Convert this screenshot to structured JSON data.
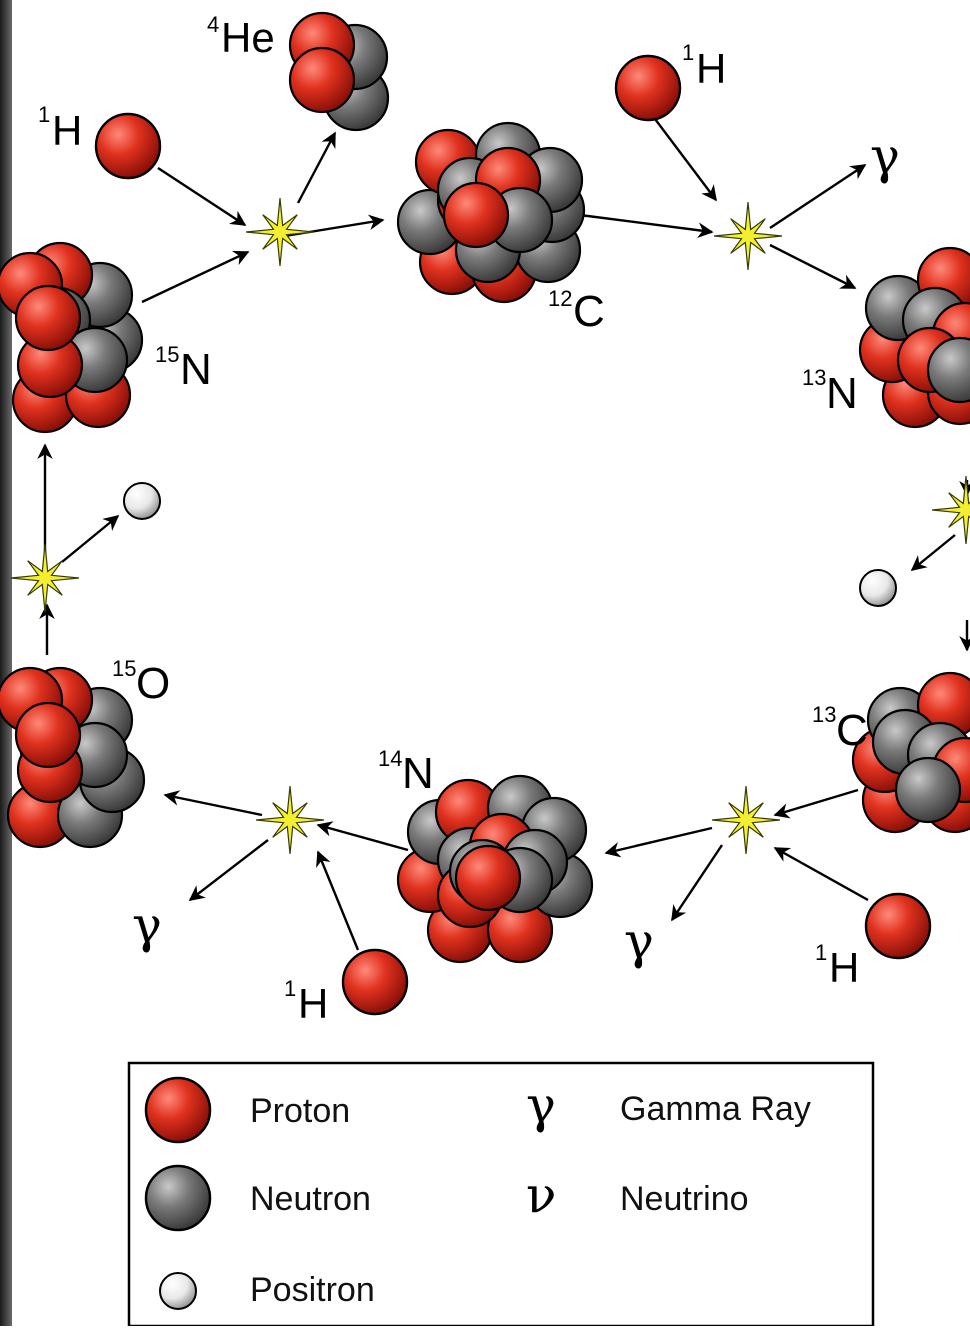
{
  "nuclei": {
    "c12": {
      "mass": "12",
      "symbol": "C"
    },
    "n13": {
      "mass": "13",
      "symbol": "N"
    },
    "c13": {
      "mass": "13",
      "symbol": "C"
    },
    "n14": {
      "mass": "14",
      "symbol": "N"
    },
    "o15": {
      "mass": "15",
      "symbol": "O"
    },
    "n15": {
      "mass": "15",
      "symbol": "N"
    },
    "he4": {
      "mass": "4",
      "symbol": "He"
    }
  },
  "hydrogen": {
    "mass": "1",
    "symbol": "H"
  },
  "symbols": {
    "gamma": "γ",
    "neutrino": "ν"
  },
  "legend": {
    "proton": "Proton",
    "neutron": "Neutron",
    "positron": "Positron",
    "gamma_ray": "Gamma Ray",
    "neutrino": "Neutrino"
  },
  "colors": {
    "proton": "#d9281e",
    "neutron": "#6e6e6e",
    "positron": "#f2f2f2",
    "flash": "#f2ee30",
    "border_left": "#3a3a3a"
  }
}
